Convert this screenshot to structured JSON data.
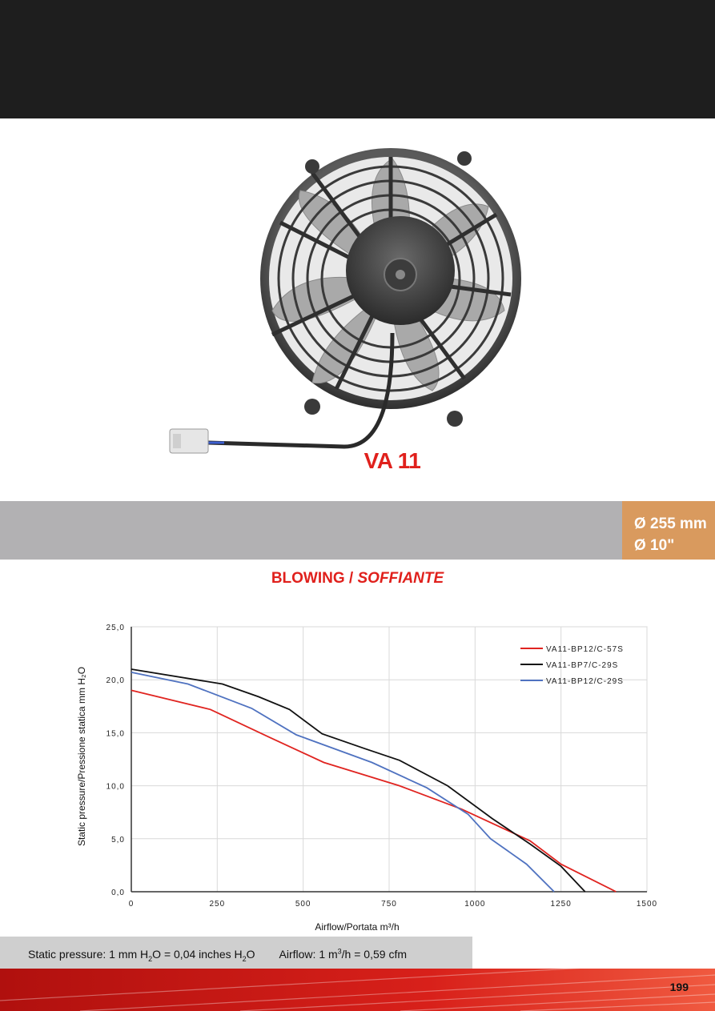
{
  "product": {
    "name": "VA 11",
    "diameter_mm": "Ø 255 mm",
    "diameter_in": "Ø 10\""
  },
  "section": {
    "title_main": "BLOWING /",
    "title_italic": "SOFFIANTE"
  },
  "colors": {
    "accent_red": "#e0201c",
    "badge_orange": "#d99a5e",
    "band_grey": "#b2b1b3"
  },
  "chart_data": {
    "type": "line",
    "xlim": [
      0,
      1500
    ],
    "ylim": [
      0,
      25
    ],
    "xticks": [
      "0",
      "250",
      "500",
      "750",
      "1000",
      "1250",
      "1500"
    ],
    "yticks": [
      "0,0",
      "5,0",
      "10,0",
      "15,0",
      "20,0",
      "25,0"
    ],
    "xlabel": "Airflow/Portata m³/h",
    "ylabel": "Static pressure/Pressione statica mm H₂O",
    "grid": true,
    "legend_position": "top-right",
    "series": [
      {
        "name": "VA11-BP12/C-57S",
        "color": "#e02420",
        "x": [
          0,
          230,
          400,
          560,
          780,
          960,
          1160,
          1250,
          1410
        ],
        "y": [
          19.0,
          17.2,
          14.6,
          12.2,
          10.0,
          7.8,
          4.8,
          2.6,
          0.0
        ]
      },
      {
        "name": "VA11-BP7/C-29S",
        "color": "#111111",
        "x": [
          0,
          265,
          370,
          460,
          555,
          680,
          780,
          920,
          1050,
          1160,
          1250,
          1320
        ],
        "y": [
          21.0,
          19.6,
          18.4,
          17.2,
          14.9,
          13.5,
          12.4,
          10.0,
          6.9,
          4.5,
          2.4,
          0.0
        ]
      },
      {
        "name": "VA11-BP12/C-29S",
        "color": "#4f72c0",
        "x": [
          0,
          165,
          350,
          480,
          700,
          860,
          980,
          1045,
          1150,
          1230
        ],
        "y": [
          20.7,
          19.6,
          17.3,
          14.8,
          12.2,
          9.8,
          7.3,
          5.0,
          2.6,
          0.0
        ]
      }
    ]
  },
  "footnote": {
    "pressure": {
      "prefix": "Static pressure: 1 mm H",
      "sub1": "2",
      "mid": "O = 0,04 inches H",
      "sub2": "2",
      "suffix": "O"
    },
    "airflow": {
      "prefix": "Airflow: 1 m",
      "sup": "3",
      "suffix": "/h = 0,59 cfm"
    }
  },
  "page_number": "199"
}
